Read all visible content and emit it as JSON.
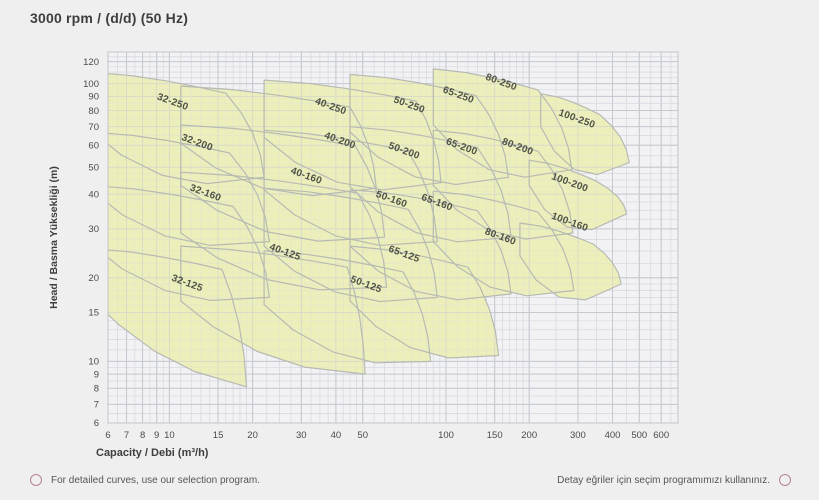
{
  "title": "3000 rpm / (d/d) (50 Hz)",
  "footer": {
    "left_text": "For detailed curves, use our selection program.",
    "right_text": "Detay eğriler için seçim programımızı kullanınız.",
    "left_icon": "circle-outline",
    "right_icon": "circle-outline",
    "icon_color": "#b5848e"
  },
  "chart_data": {
    "type": "area",
    "title": "3000 rpm / (d/d) (50 Hz)",
    "description": "Pump family selection chart: head vs capacity ranges for 22 pump sizes on log-log axes",
    "x_axis": {
      "label": "Capacity / Debi (m³/h)",
      "scale": "log",
      "min": 6,
      "max": 690,
      "ticks": [
        6,
        7,
        8,
        9,
        10,
        15,
        20,
        30,
        40,
        50,
        100,
        150,
        200,
        300,
        400,
        500,
        600
      ]
    },
    "y_axis": {
      "label": "Head / Basma Yüksekliği (m)",
      "scale": "log",
      "min": 6,
      "max": 130,
      "ticks": [
        6,
        7,
        8,
        9,
        10,
        15,
        20,
        30,
        40,
        50,
        60,
        70,
        80,
        90,
        100,
        120
      ]
    },
    "grid": "on",
    "colors": {
      "region_fill": "#edefbb",
      "region_stroke": "#b7bab2",
      "grid_minor": "#d7d9e0",
      "grid_major": "#c3c6cf",
      "plot_bg": "#f2f2f4",
      "frame": "#c2c4ca",
      "tick_text": "#4b4b4d",
      "axis_title": "#3e3e40",
      "region_label": "#4e5145"
    },
    "regions": [
      {
        "name": "32-250",
        "flow": [
          5.2,
          16,
          22
        ],
        "head": [
          110,
          68,
          46
        ],
        "label_at": [
          10.2,
          84
        ]
      },
      {
        "name": "40-250",
        "flow": [
          11,
          45,
          56
        ],
        "head": [
          98,
          61,
          42
        ],
        "label_at": [
          38,
          81
        ]
      },
      {
        "name": "50-250",
        "flow": [
          22,
          78,
          96
        ],
        "head": [
          103,
          64,
          44
        ],
        "label_at": [
          73,
          82
        ]
      },
      {
        "name": "65-250",
        "flow": [
          45,
          128,
          168
        ],
        "head": [
          108,
          67,
          46
        ],
        "label_at": [
          110,
          89
        ]
      },
      {
        "name": "80-250",
        "flow": [
          90,
          215,
          285
        ],
        "head": [
          113,
          71,
          49
        ],
        "label_at": [
          157,
          99
        ]
      },
      {
        "name": "100-250",
        "flow": [
          220,
          360,
          460
        ],
        "head": [
          92,
          70,
          52
        ],
        "label_at": [
          295,
          73
        ]
      },
      {
        "name": "32-200",
        "flow": [
          5.2,
          16.5,
          23
        ],
        "head": [
          67,
          41.5,
          27
        ],
        "label_at": [
          12.5,
          60
        ]
      },
      {
        "name": "40-200",
        "flow": [
          11,
          47,
          60
        ],
        "head": [
          71,
          43,
          28
        ],
        "label_at": [
          41,
          61
        ]
      },
      {
        "name": "50-200",
        "flow": [
          22,
          73,
          93
        ],
        "head": [
          68,
          41.5,
          27
        ],
        "label_at": [
          70,
          56
        ]
      },
      {
        "name": "65-200",
        "flow": [
          45,
          130,
          172
        ],
        "head": [
          70,
          42.5,
          28
        ],
        "label_at": [
          113,
          58
        ]
      },
      {
        "name": "80-200",
        "flow": [
          90,
          215,
          288
        ],
        "head": [
          68,
          43,
          29
        ],
        "label_at": [
          180,
          58
        ]
      },
      {
        "name": "100-200",
        "flow": [
          200,
          350,
          450
        ],
        "head": [
          53,
          43,
          34
        ],
        "label_at": [
          278,
          43
        ]
      },
      {
        "name": "32-160",
        "flow": [
          5.2,
          17,
          23
        ],
        "head": [
          43,
          26.5,
          17
        ],
        "label_at": [
          13.4,
          39.5
        ]
      },
      {
        "name": "40-160",
        "flow": [
          11,
          48,
          61
        ],
        "head": [
          48,
          29,
          18.5
        ],
        "label_at": [
          31,
          45.5
        ]
      },
      {
        "name": "50-160",
        "flow": [
          22,
          73,
          93
        ],
        "head": [
          42,
          26,
          17
        ],
        "label_at": [
          63,
          37.5
        ]
      },
      {
        "name": "65-160",
        "flow": [
          45,
          130,
          172
        ],
        "head": [
          41.5,
          26,
          17.5
        ],
        "label_at": [
          92,
          36.5
        ]
      },
      {
        "name": "80-160",
        "flow": [
          90,
          215,
          290
        ],
        "head": [
          41,
          27,
          18
        ],
        "label_at": [
          156,
          27.5
        ]
      },
      {
        "name": "100-160",
        "flow": [
          185,
          340,
          430
        ],
        "head": [
          31.5,
          24,
          19
        ],
        "label_at": [
          278,
          31
        ]
      },
      {
        "name": "32-125",
        "flow": [
          5.2,
          15.5,
          19
        ],
        "head": [
          25.5,
          17,
          8.1
        ],
        "label_at": [
          11.5,
          18.7
        ]
      },
      {
        "name": "40-125",
        "flow": [
          11,
          44,
          51
        ],
        "head": [
          26,
          16.5,
          9
        ],
        "label_at": [
          26,
          24.2
        ]
      },
      {
        "name": "50-125",
        "flow": [
          22,
          70,
          88
        ],
        "head": [
          25,
          16,
          10
        ],
        "label_at": [
          51,
          18.5
        ]
      },
      {
        "name": "65-125",
        "flow": [
          45,
          120,
          155
        ],
        "head": [
          26,
          16.5,
          10.5
        ],
        "label_at": [
          70,
          23.8
        ]
      }
    ]
  }
}
